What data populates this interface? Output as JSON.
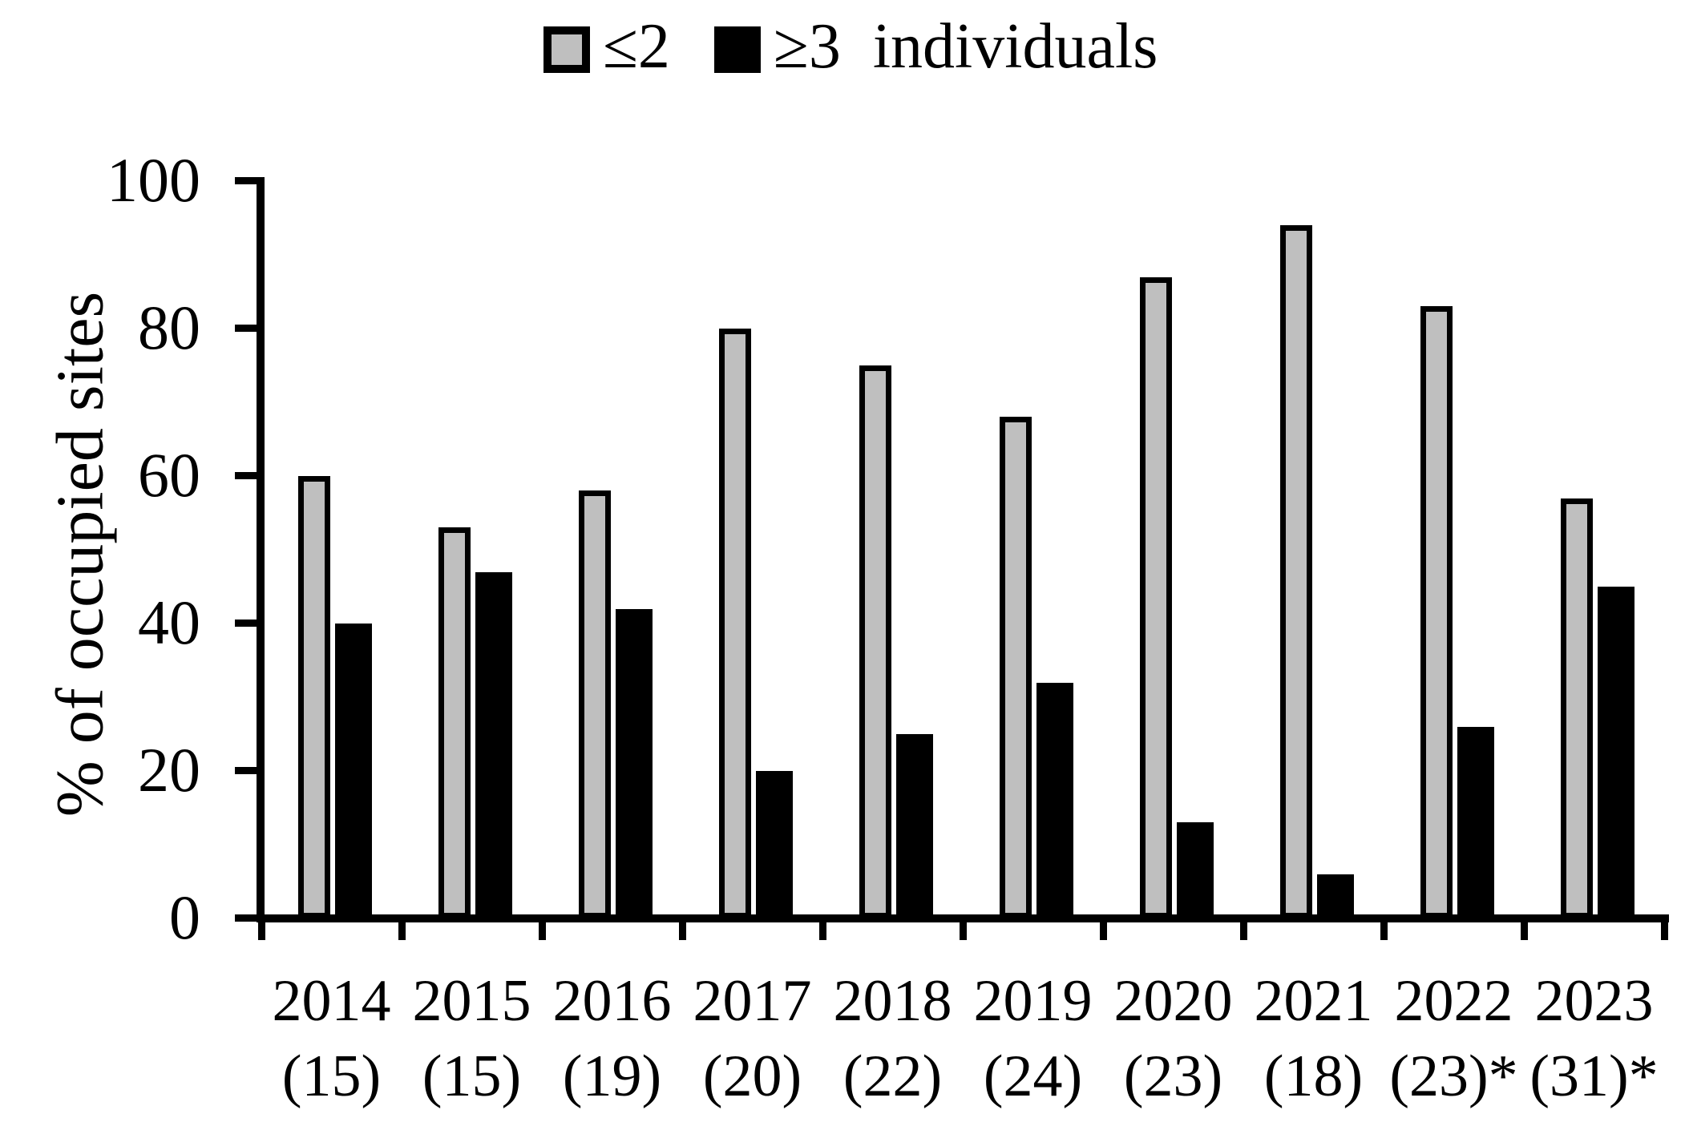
{
  "chart_data": {
    "type": "bar",
    "title": "",
    "ylabel": "% of occupied sites",
    "xlabel": "",
    "ylim": [
      0,
      100
    ],
    "yticks": [
      0,
      20,
      40,
      60,
      80,
      100
    ],
    "grid": false,
    "legend_position": "top",
    "categories": [
      {
        "year": "2014",
        "n": "(15)"
      },
      {
        "year": "2015",
        "n": "(15)"
      },
      {
        "year": "2016",
        "n": "(19)"
      },
      {
        "year": "2017",
        "n": "(20)"
      },
      {
        "year": "2018",
        "n": "(22)"
      },
      {
        "year": "2019",
        "n": "(24)"
      },
      {
        "year": "2020",
        "n": "(23)"
      },
      {
        "year": "2021",
        "n": "(18)"
      },
      {
        "year": "2022",
        "n": "(23)*"
      },
      {
        "year": "2023",
        "n": "(31)*"
      }
    ],
    "series": [
      {
        "name": "≤2",
        "color": "#bfbfbf",
        "border_color": "#000000",
        "values": [
          60,
          53,
          58,
          80,
          75,
          68,
          87,
          94,
          83,
          57
        ]
      },
      {
        "name": "≥3  individuals",
        "color": "#000000",
        "border_color": "#000000",
        "values": [
          40,
          47,
          42,
          20,
          25,
          32,
          13,
          6,
          26,
          45
        ]
      }
    ]
  }
}
